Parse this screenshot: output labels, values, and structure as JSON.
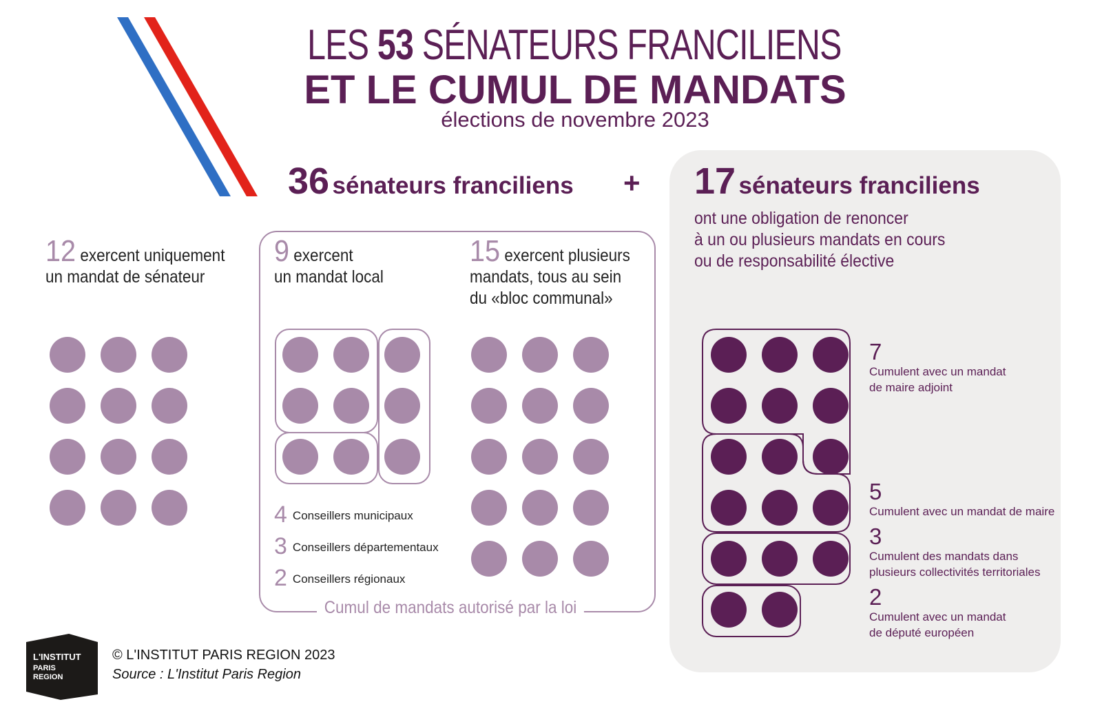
{
  "title": {
    "line1_pre": "LES ",
    "line1_num": "53",
    "line1_post": " SÉNATEURS FRANCILIENS",
    "line2": "ET LE CUMUL DE MANDATS",
    "line3": "élections de novembre 2023"
  },
  "left_header": {
    "number": "36",
    "label": "sénateurs franciliens"
  },
  "plus_sign": "+",
  "right_header": {
    "number": "17",
    "label": "sénateurs franciliens",
    "description": [
      "ont une obligation de renoncer",
      "à un ou plusieurs mandats en cours",
      "ou de responsabilité élective"
    ]
  },
  "groups": {
    "only_senator": {
      "number": "12",
      "line1": "exercent uniquement",
      "line2": "un mandat de sénateur",
      "count": 12
    },
    "local": {
      "number": "9",
      "line1": "exercent",
      "line2": "un mandat local",
      "count": 9
    },
    "bloc": {
      "number": "15",
      "line1": "exercent plusieurs",
      "line2": "mandats, tous au sein",
      "line3": "du «bloc communal»",
      "count": 15
    }
  },
  "local_breakdown": [
    {
      "number": "4",
      "label": "Conseillers municipaux"
    },
    {
      "number": "3",
      "label": "Conseillers départementaux"
    },
    {
      "number": "2",
      "label": "Conseillers régionaux"
    }
  ],
  "box_caption": "Cumul de mandats autorisé par la loi",
  "right_breakdown": [
    {
      "number": "7",
      "lines": [
        "Cumulent avec un mandat",
        "de maire adjoint"
      ]
    },
    {
      "number": "5",
      "lines": [
        "Cumulent avec un mandat de maire"
      ]
    },
    {
      "number": "3",
      "lines": [
        "Cumulent des mandats dans",
        "plusieurs collectivités territoriales"
      ]
    },
    {
      "number": "2",
      "lines": [
        "Cumulent avec un mandat",
        "de député européen"
      ]
    }
  ],
  "footer": {
    "logo_lines": [
      "L'INSTITUT",
      "PARIS",
      "REGION"
    ],
    "copyright": "© L'INSTITUT PARIS REGION 2023",
    "source": "Source : L'Institut Paris Region"
  },
  "colors": {
    "dark_purple": "#5b1f55",
    "light_purple": "#a88aa9",
    "panel_bg": "#efeeed",
    "flag_blue": "#2f6fc4",
    "flag_red": "#e2231a"
  }
}
